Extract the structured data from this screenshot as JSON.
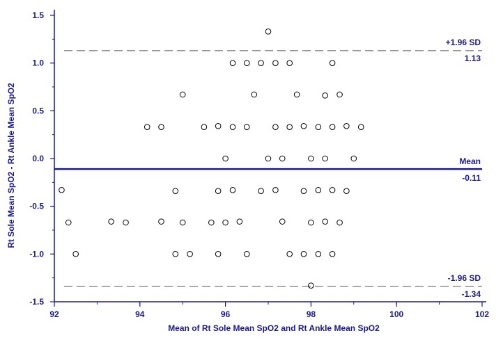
{
  "chart_data": {
    "type": "scatter",
    "title": "",
    "xlabel": "Mean of Rt Sole Mean SpO2 and Rt Ankle Mean SpO2",
    "ylabel": "Rt Sole Mean SpO2 - Rt Ankle Mean SpO2",
    "xlim": [
      92,
      102
    ],
    "ylim": [
      -1.5,
      1.5
    ],
    "x_ticks": [
      92,
      94,
      96,
      98,
      100,
      102
    ],
    "x_tick_labels": [
      "92",
      "94",
      "96",
      "98",
      "100",
      "102"
    ],
    "y_ticks": [
      1.5,
      1.0,
      0.5,
      0.0,
      -0.5,
      -1.0,
      -1.5
    ],
    "y_tick_labels": [
      "1.5",
      "1.0",
      "0.5",
      "0.0",
      "-0.5",
      "-1.0",
      "-1.5"
    ],
    "grid": false,
    "reference_lines": {
      "mean": {
        "value": -0.11,
        "label": "Mean",
        "value_label": "-0.11"
      },
      "upper": {
        "value": 1.13,
        "label": "+1.96 SD",
        "value_label": "1.13"
      },
      "lower": {
        "value": -1.34,
        "label": "-1.96 SD",
        "value_label": "-1.34"
      }
    },
    "points": [
      {
        "x": 97.0,
        "y": 1.33
      },
      {
        "x": 96.17,
        "y": 1.0
      },
      {
        "x": 96.5,
        "y": 1.0
      },
      {
        "x": 96.83,
        "y": 1.0
      },
      {
        "x": 97.17,
        "y": 1.0
      },
      {
        "x": 97.5,
        "y": 1.0
      },
      {
        "x": 98.5,
        "y": 1.0
      },
      {
        "x": 95.0,
        "y": 0.67
      },
      {
        "x": 96.67,
        "y": 0.67
      },
      {
        "x": 97.67,
        "y": 0.67
      },
      {
        "x": 98.33,
        "y": 0.66
      },
      {
        "x": 98.67,
        "y": 0.67
      },
      {
        "x": 94.17,
        "y": 0.33
      },
      {
        "x": 94.5,
        "y": 0.33
      },
      {
        "x": 95.5,
        "y": 0.33
      },
      {
        "x": 95.83,
        "y": 0.34
      },
      {
        "x": 96.17,
        "y": 0.33
      },
      {
        "x": 96.5,
        "y": 0.33
      },
      {
        "x": 97.17,
        "y": 0.33
      },
      {
        "x": 97.5,
        "y": 0.33
      },
      {
        "x": 97.83,
        "y": 0.34
      },
      {
        "x": 98.17,
        "y": 0.33
      },
      {
        "x": 98.5,
        "y": 0.33
      },
      {
        "x": 98.83,
        "y": 0.34
      },
      {
        "x": 99.17,
        "y": 0.33
      },
      {
        "x": 96.0,
        "y": 0.0
      },
      {
        "x": 97.0,
        "y": 0.0
      },
      {
        "x": 97.33,
        "y": 0.0
      },
      {
        "x": 98.0,
        "y": 0.0
      },
      {
        "x": 98.33,
        "y": 0.0
      },
      {
        "x": 99.0,
        "y": 0.0
      },
      {
        "x": 92.17,
        "y": -0.33
      },
      {
        "x": 94.83,
        "y": -0.34
      },
      {
        "x": 95.83,
        "y": -0.34
      },
      {
        "x": 96.17,
        "y": -0.33
      },
      {
        "x": 96.83,
        "y": -0.34
      },
      {
        "x": 97.17,
        "y": -0.33
      },
      {
        "x": 97.83,
        "y": -0.34
      },
      {
        "x": 98.17,
        "y": -0.33
      },
      {
        "x": 98.5,
        "y": -0.33
      },
      {
        "x": 98.83,
        "y": -0.34
      },
      {
        "x": 92.33,
        "y": -0.67
      },
      {
        "x": 93.33,
        "y": -0.66
      },
      {
        "x": 93.67,
        "y": -0.67
      },
      {
        "x": 94.5,
        "y": -0.66
      },
      {
        "x": 95.0,
        "y": -0.67
      },
      {
        "x": 95.67,
        "y": -0.67
      },
      {
        "x": 96.0,
        "y": -0.67
      },
      {
        "x": 96.33,
        "y": -0.66
      },
      {
        "x": 97.33,
        "y": -0.66
      },
      {
        "x": 98.0,
        "y": -0.67
      },
      {
        "x": 98.33,
        "y": -0.66
      },
      {
        "x": 98.67,
        "y": -0.67
      },
      {
        "x": 92.5,
        "y": -1.0
      },
      {
        "x": 94.83,
        "y": -1.0
      },
      {
        "x": 95.17,
        "y": -1.0
      },
      {
        "x": 95.83,
        "y": -1.0
      },
      {
        "x": 96.5,
        "y": -1.0
      },
      {
        "x": 97.5,
        "y": -1.0
      },
      {
        "x": 97.83,
        "y": -1.0
      },
      {
        "x": 98.17,
        "y": -1.0
      },
      {
        "x": 98.5,
        "y": -1.0
      },
      {
        "x": 98.0,
        "y": -1.33
      }
    ],
    "colors": {
      "axis": "#1a1a8c",
      "mean_line": "#1a1a8c",
      "sd_line": "#555555",
      "points": "#000000"
    }
  }
}
